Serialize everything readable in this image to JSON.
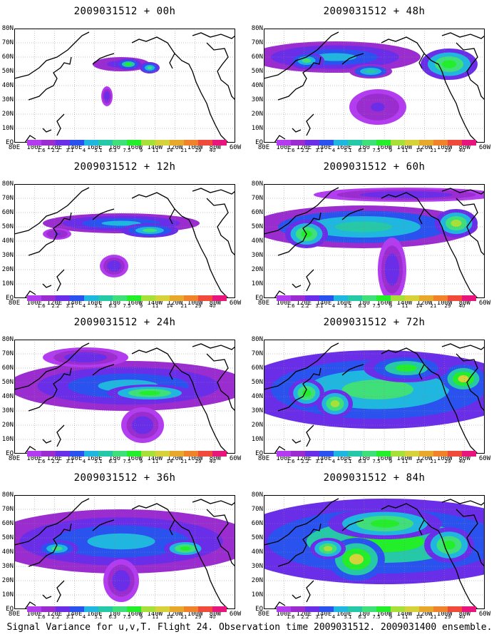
{
  "footer": "Signal Variance for u,v,T. Flight 24. Observation time 2009031512. 2009031400 ensemble.",
  "lat_labels": [
    "80N",
    "70N",
    "60N",
    "50N",
    "40N",
    "30N",
    "20N",
    "10N",
    "EQ"
  ],
  "lon_labels": [
    "80E",
    "100E",
    "120E",
    "140E",
    "160E",
    "180",
    "160W",
    "140W",
    "120W",
    "100W",
    "80W",
    "60W"
  ],
  "colorbar": {
    "levels": [
      "1.6",
      "2.2",
      "3.1",
      "4",
      "5.1",
      "6.3",
      "7.5",
      "9",
      "11",
      "14",
      "21",
      "29",
      "40"
    ],
    "colors": [
      "#b43cf0",
      "#9b2cd0",
      "#6b2ee8",
      "#2a52ef",
      "#1fb7e0",
      "#25c9a7",
      "#3fe07a",
      "#22ee2a",
      "#a8e03a",
      "#d6d23a",
      "#e8a82c",
      "#f0822c",
      "#f04a3a",
      "#e8157d"
    ]
  },
  "panels": [
    {
      "title": "2009031512 + 00h"
    },
    {
      "title": "2009031512 + 48h"
    },
    {
      "title": "2009031512 + 12h"
    },
    {
      "title": "2009031512 + 60h"
    },
    {
      "title": "2009031512 + 24h"
    },
    {
      "title": "2009031512 + 72h"
    },
    {
      "title": "2009031512 + 36h"
    },
    {
      "title": "2009031512 + 84h"
    }
  ]
}
